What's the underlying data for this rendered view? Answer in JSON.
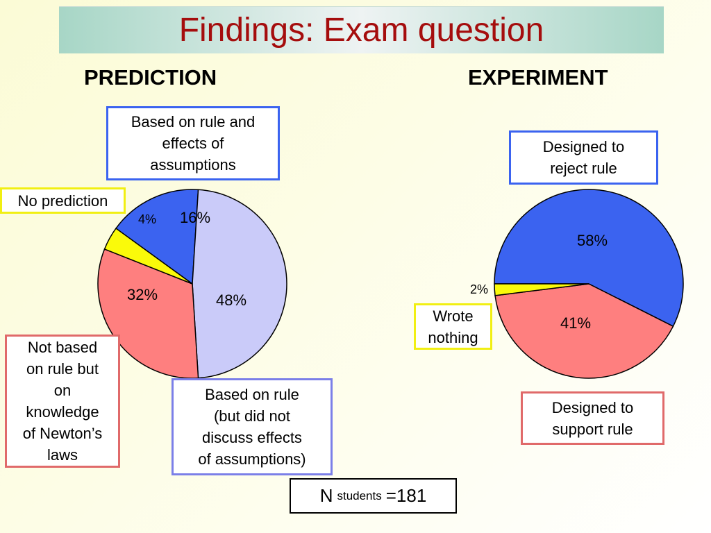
{
  "slide": {
    "title": "Findings: Exam question",
    "prediction_heading": "PREDICTION",
    "experiment_heading": "EXPERIMENT"
  },
  "callouts": {
    "rule_and_assumptions": "Based on rule and\neffects of\nassumptions",
    "no_prediction": "No prediction",
    "newtons_laws": "Not based\non rule but\non\nknowledge\nof Newton’s\nlaws",
    "rule_no_assumptions": "Based on rule\n(but did not\ndiscuss effects\nof assumptions)",
    "reject_rule": "Designed to\nreject rule",
    "wrote_nothing": "Wrote\nnothing",
    "support_rule": "Designed to\nsupport rule"
  },
  "sample": {
    "n_label": "N",
    "n_sub": "students",
    "n_value": "=181"
  },
  "colors": {
    "title": "#a50d0d",
    "blue": "#3b63f0",
    "lavender": "#cacbf9",
    "salmon": "#fe7f7f",
    "yellow": "#fafa0a",
    "title_band": "#a7d6c6"
  },
  "chart_data": [
    {
      "type": "pie",
      "title": "PREDICTION",
      "series": [
        {
          "label": "16%",
          "value": 16,
          "color": "#3b63f0"
        },
        {
          "label": "48%",
          "value": 48,
          "color": "#cacbf9"
        },
        {
          "label": "32%",
          "value": 32,
          "color": "#fe7f7f"
        },
        {
          "label": "4%",
          "value": 4,
          "color": "#fafa0a"
        }
      ]
    },
    {
      "type": "pie",
      "title": "EXPERIMENT",
      "series": [
        {
          "label": "58%",
          "value": 58,
          "color": "#3b63f0"
        },
        {
          "label": "41%",
          "value": 41,
          "color": "#fe7f7f"
        },
        {
          "label": "2%",
          "value": 2,
          "color": "#fafa0a"
        }
      ]
    }
  ]
}
